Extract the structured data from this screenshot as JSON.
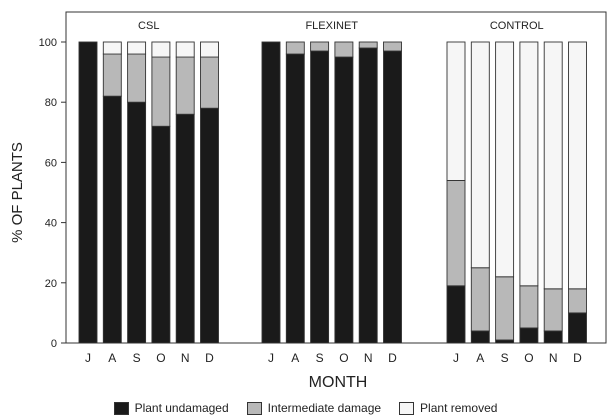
{
  "chart_data": {
    "type": "bar",
    "stacked": true,
    "ylabel": "% OF PLANTS",
    "xlabel": "MONTH",
    "ylim": [
      0,
      100
    ],
    "yticks": [
      "0",
      "20",
      "40",
      "60",
      "80",
      "100"
    ],
    "legend_position": "bottom",
    "colors": {
      "Plant undamaged": "#1a1a1a",
      "Intermediate damage": "#b8b8b8",
      "Plant removed": "#f6f6f6"
    },
    "panels": [
      {
        "title": "CSL",
        "categories": [
          "J",
          "A",
          "S",
          "O",
          "N",
          "D"
        ],
        "series": [
          {
            "name": "Plant undamaged",
            "values": [
              100,
              82,
              80,
              72,
              76,
              78
            ]
          },
          {
            "name": "Intermediate damage",
            "values": [
              0,
              14,
              16,
              23,
              19,
              17
            ]
          },
          {
            "name": "Plant removed",
            "values": [
              0,
              4,
              4,
              5,
              5,
              5
            ]
          }
        ]
      },
      {
        "title": "FLEXINET",
        "categories": [
          "J",
          "A",
          "S",
          "O",
          "N",
          "D"
        ],
        "series": [
          {
            "name": "Plant undamaged",
            "values": [
              100,
              96,
              97,
              95,
              98,
              97
            ]
          },
          {
            "name": "Intermediate damage",
            "values": [
              0,
              4,
              3,
              5,
              2,
              3
            ]
          },
          {
            "name": "Plant removed",
            "values": [
              0,
              0,
              0,
              0,
              0,
              0
            ]
          }
        ]
      },
      {
        "title": "CONTROL",
        "categories": [
          "J",
          "A",
          "S",
          "O",
          "N",
          "D"
        ],
        "series": [
          {
            "name": "Plant undamaged",
            "values": [
              19,
              4,
              1,
              5,
              4,
              10
            ]
          },
          {
            "name": "Intermediate damage",
            "values": [
              35,
              21,
              21,
              14,
              14,
              8
            ]
          },
          {
            "name": "Plant removed",
            "values": [
              46,
              75,
              78,
              81,
              82,
              82
            ]
          }
        ]
      }
    ]
  },
  "legend": {
    "undamaged_label": "Plant undamaged",
    "intermediate_label": "Intermediate damage",
    "removed_label": "Plant removed"
  }
}
